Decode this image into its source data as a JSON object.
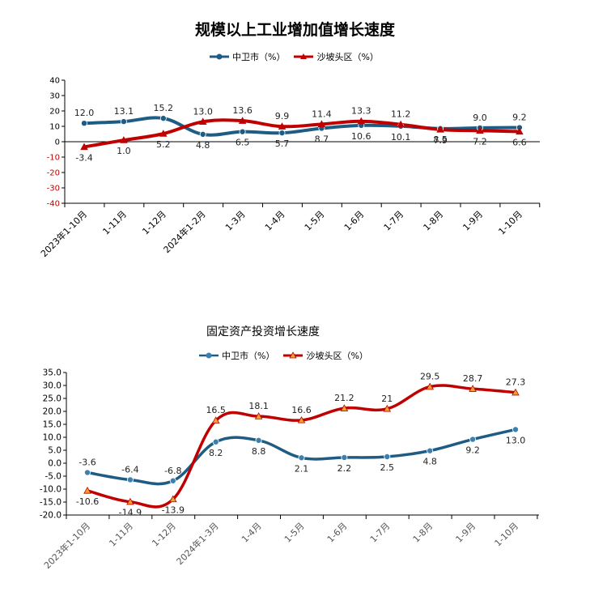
{
  "colors": {
    "zhongwei": "#1f5c84",
    "shapotou": "#c00000",
    "neg_tick": "#c00000"
  },
  "charts": [
    {
      "title": "规模以上工业增加值增长速度",
      "legend": [
        "中卫市（%）",
        "沙坡头区（%）"
      ]
    },
    {
      "title": "固定资产投资增长速度",
      "legend": [
        "中卫市（%）",
        "沙坡头区（%）"
      ]
    }
  ],
  "chart_data": [
    {
      "type": "line",
      "title": "规模以上工业增加值增长速度",
      "categories": [
        "2023年1-10月",
        "1-11月",
        "1-12月",
        "2024年1-2月",
        "1-3月",
        "1-4月",
        "1-5月",
        "1-6月",
        "1-7月",
        "1-8月",
        "1-9月",
        "1-10月"
      ],
      "series": [
        {
          "name": "中卫市（%）",
          "values": [
            12.0,
            13.1,
            15.2,
            4.8,
            6.5,
            5.7,
            8.7,
            10.6,
            10.1,
            8.5,
            9.0,
            9.2
          ],
          "labels": [
            "12.0",
            "13.1",
            "15.2",
            "4.8",
            "6.5",
            "5.7",
            "8.7",
            "10.6",
            "10.1",
            "8.5",
            "9.0",
            "9.2"
          ]
        },
        {
          "name": "沙坡头区（%）",
          "values": [
            -3.4,
            1.0,
            5.2,
            13.0,
            13.6,
            9.9,
            11.4,
            13.3,
            11.2,
            7.9,
            7.2,
            6.6
          ],
          "labels": [
            "-3.4",
            "1.0",
            "5.2",
            "13.0",
            "13.6",
            "9.9",
            "11.4",
            "13.3",
            "11.2",
            "7.9",
            "7.2",
            "6.6"
          ]
        }
      ],
      "ylim": [
        -40,
        40
      ],
      "yticks": [
        "40",
        "30",
        "20",
        "10",
        "0",
        "-10",
        "-20",
        "-30",
        "-40"
      ],
      "grid": false,
      "legend_position": "top"
    },
    {
      "type": "line",
      "title": "固定资产投资增长速度",
      "categories": [
        "2023年1-10月",
        "1-11月",
        "1-12月",
        "2024年1-3月",
        "1-4月",
        "1-5月",
        "1-6月",
        "1-7月",
        "1-8月",
        "1-9月",
        "1-10月"
      ],
      "series": [
        {
          "name": "中卫市（%）",
          "values": [
            -3.6,
            -6.4,
            -6.8,
            8.2,
            8.8,
            2.1,
            2.2,
            2.5,
            4.8,
            9.2,
            13.0
          ],
          "labels": [
            "-3.6",
            "-6.4",
            "-6.8",
            "8.2",
            "8.8",
            "2.1",
            "2.2",
            "2.5",
            "4.8",
            "9.2",
            "13.0"
          ]
        },
        {
          "name": "沙坡头区（%）",
          "values": [
            -10.6,
            -14.9,
            -13.9,
            16.5,
            18.1,
            16.6,
            21.2,
            21,
            29.5,
            28.7,
            27.3
          ],
          "labels": [
            "-10.6",
            "-14.9",
            "-13.9",
            "16.5",
            "18.1",
            "16.6",
            "21.2",
            "21",
            "29.5",
            "28.7",
            "27.3"
          ]
        }
      ],
      "ylim": [
        -20,
        35
      ],
      "yticks": [
        "35.0",
        "30.0",
        "25.0",
        "20.0",
        "15.0",
        "10.0",
        "5.0",
        "0.0",
        "-5.0",
        "-10.0",
        "-15.0",
        "-20.0"
      ],
      "grid": false,
      "legend_position": "top"
    }
  ]
}
